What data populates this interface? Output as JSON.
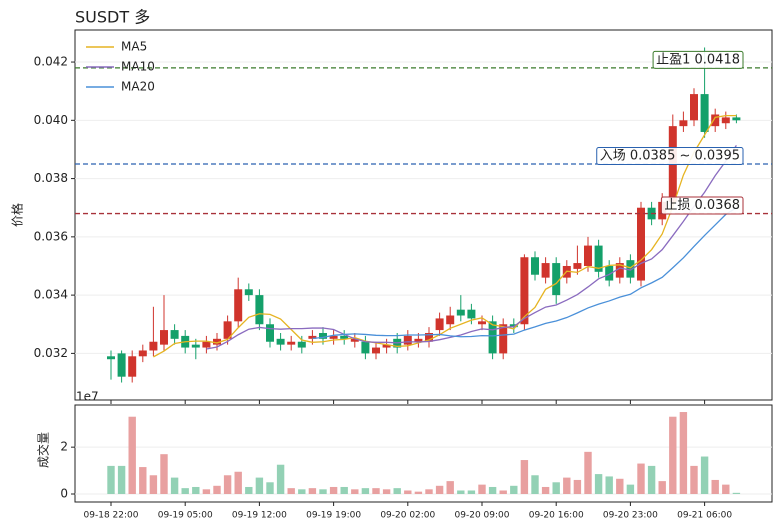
{
  "chart_data": [
    {
      "type": "candlestick",
      "title": "SUSDT 多",
      "ylabel": "价格",
      "open": [
        0.0319,
        0.032,
        0.0312,
        0.0319,
        0.0321,
        0.0323,
        0.0328,
        0.0326,
        0.0323,
        0.0322,
        0.0323,
        0.0325,
        0.0331,
        0.0342,
        0.034,
        0.033,
        0.0325,
        0.0323,
        0.0324,
        0.0325,
        0.0327,
        0.0325,
        0.0326,
        0.0324,
        0.0324,
        0.032,
        0.0322,
        0.0325,
        0.0323,
        0.0324,
        0.0324,
        0.0328,
        0.033,
        0.0335,
        0.0335,
        0.033,
        0.0331,
        0.032,
        0.033,
        0.033,
        0.0353,
        0.0346,
        0.0351,
        0.0346,
        0.0349,
        0.035,
        0.0357,
        0.035,
        0.0346,
        0.0352,
        0.0345,
        0.037,
        0.0366,
        0.0372,
        0.0398,
        0.04,
        0.0409,
        0.0398,
        0.0399,
        0.0401
      ],
      "high": [
        0.0321,
        0.0321,
        0.0321,
        0.0323,
        0.0336,
        0.034,
        0.033,
        0.0328,
        0.0325,
        0.0326,
        0.0327,
        0.0333,
        0.0346,
        0.0344,
        0.0342,
        0.0332,
        0.0327,
        0.0326,
        0.0326,
        0.0328,
        0.0329,
        0.0328,
        0.0328,
        0.0327,
        0.0326,
        0.0324,
        0.0325,
        0.0327,
        0.0328,
        0.0327,
        0.0329,
        0.0334,
        0.0336,
        0.034,
        0.0337,
        0.0333,
        0.0333,
        0.0332,
        0.0332,
        0.0354,
        0.0355,
        0.0353,
        0.0353,
        0.0352,
        0.0357,
        0.036,
        0.0359,
        0.0352,
        0.0353,
        0.0354,
        0.0372,
        0.0372,
        0.0375,
        0.0402,
        0.0403,
        0.0411,
        0.0425,
        0.0404,
        0.0403,
        0.0402
      ],
      "low": [
        0.0311,
        0.031,
        0.031,
        0.0317,
        0.0319,
        0.0321,
        0.0323,
        0.032,
        0.0318,
        0.032,
        0.0321,
        0.0323,
        0.0329,
        0.0338,
        0.0328,
        0.0322,
        0.0321,
        0.0321,
        0.032,
        0.0323,
        0.0323,
        0.0323,
        0.0323,
        0.0322,
        0.0318,
        0.0318,
        0.032,
        0.032,
        0.0321,
        0.0322,
        0.0322,
        0.0326,
        0.0328,
        0.0331,
        0.033,
        0.0328,
        0.0318,
        0.0318,
        0.0327,
        0.0328,
        0.0345,
        0.0344,
        0.0337,
        0.0344,
        0.0347,
        0.0348,
        0.0346,
        0.0343,
        0.0344,
        0.0344,
        0.0343,
        0.0364,
        0.0364,
        0.037,
        0.0396,
        0.0398,
        0.0394,
        0.0396,
        0.0397,
        0.0399
      ],
      "close": [
        0.0318,
        0.0312,
        0.0319,
        0.0321,
        0.0324,
        0.0328,
        0.0325,
        0.0322,
        0.0322,
        0.0324,
        0.0325,
        0.0331,
        0.0342,
        0.034,
        0.033,
        0.0324,
        0.0323,
        0.0324,
        0.0322,
        0.0326,
        0.0325,
        0.0326,
        0.0325,
        0.0325,
        0.032,
        0.0322,
        0.0323,
        0.0322,
        0.0326,
        0.0325,
        0.0327,
        0.0332,
        0.0333,
        0.0333,
        0.0332,
        0.0331,
        0.032,
        0.033,
        0.0329,
        0.0353,
        0.0347,
        0.0351,
        0.034,
        0.035,
        0.0351,
        0.0357,
        0.0348,
        0.0345,
        0.0351,
        0.0346,
        0.037,
        0.0366,
        0.0372,
        0.0398,
        0.04,
        0.0409,
        0.0396,
        0.0402,
        0.0401,
        0.04
      ],
      "up_color": "#d0342c",
      "down_color": "#14a06a",
      "series": [
        {
          "name": "MA5",
          "color": "#e6b422",
          "values": [
            null,
            null,
            null,
            null,
            0.03188,
            0.03208,
            0.03234,
            0.0324,
            0.03242,
            0.03242,
            0.03236,
            0.03248,
            0.03288,
            0.03324,
            0.03336,
            0.03334,
            0.03318,
            0.03282,
            0.03246,
            0.03238,
            0.0324,
            0.03246,
            0.03248,
            0.03254,
            0.03242,
            0.03236,
            0.0323,
            0.03224,
            0.03226,
            0.03236,
            0.03246,
            0.03264,
            0.03286,
            0.033,
            0.03314,
            0.03322,
            0.03298,
            0.03292,
            0.03284,
            0.03326,
            0.03358,
            0.0342,
            0.0344,
            0.03482,
            0.03478,
            0.03498,
            0.03492,
            0.03502,
            0.03504,
            0.03494,
            0.0352,
            0.03556,
            0.0361,
            0.03704,
            0.03812,
            0.0389,
            0.0395,
            0.0401,
            0.04016,
            0.04016
          ]
        },
        {
          "name": "MA10",
          "color": "#8a6bbf",
          "values": [
            null,
            null,
            null,
            null,
            null,
            null,
            null,
            null,
            null,
            0.03215,
            0.03222,
            0.03241,
            0.03264,
            0.03283,
            0.03289,
            0.03285,
            0.03283,
            0.03285,
            0.03285,
            0.03287,
            0.03287,
            0.03282,
            0.03265,
            0.0325,
            0.0324,
            0.03238,
            0.03238,
            0.03236,
            0.0324,
            0.03239,
            0.03241,
            0.03247,
            0.03255,
            0.03263,
            0.03275,
            0.03284,
            0.03281,
            0.03289,
            0.03292,
            0.0332,
            0.0334,
            0.03359,
            0.03366,
            0.03383,
            0.03402,
            0.03428,
            0.03456,
            0.03471,
            0.03493,
            0.03486,
            0.03509,
            0.03524,
            0.03556,
            0.03604,
            0.03653,
            0.03705,
            0.03753,
            0.0381,
            0.0386,
            0.03914
          ]
        },
        {
          "name": "MA20",
          "color": "#4a90d9",
          "values": [
            null,
            null,
            null,
            null,
            null,
            null,
            null,
            null,
            null,
            null,
            null,
            null,
            null,
            null,
            null,
            null,
            null,
            null,
            null,
            0.03251,
            0.03255,
            0.03262,
            0.03265,
            0.03267,
            0.03265,
            0.03262,
            0.03261,
            0.03261,
            0.03263,
            0.03263,
            0.03264,
            0.03265,
            0.0326,
            0.03257,
            0.03258,
            0.03261,
            0.0326,
            0.03263,
            0.03266,
            0.0328,
            0.03291,
            0.03303,
            0.03311,
            0.03323,
            0.03339,
            0.03356,
            0.03369,
            0.0338,
            0.03393,
            0.03403,
            0.03425,
            0.03442,
            0.03461,
            0.03494,
            0.03528,
            0.03567,
            0.03605,
            0.03641,
            0.03677,
            0.037
          ]
        }
      ],
      "legend": "upper left",
      "ylim": [
        0.0304,
        0.0431
      ],
      "yticks": [
        0.032,
        0.034,
        0.036,
        0.038,
        {
          "value": 0.04,
          "label": "0.040"
        },
        0.042
      ],
      "grid": true,
      "annotations": [
        {
          "text": "止盈1 0.0418",
          "value": 0.0418,
          "color": "#3a7a2a"
        },
        {
          "text": "入场 0.0385 ~ 0.0395",
          "value": 0.0385,
          "color": "#2a62b0"
        },
        {
          "text": "止损 0.0368",
          "value": 0.0368,
          "color": "#a8323a"
        }
      ]
    },
    {
      "type": "bar",
      "ylabel": "成交量",
      "offset_label": "1e7",
      "categories": [
        "09-18 22:00",
        null,
        null,
        null,
        null,
        null,
        null,
        "09-19 05:00",
        null,
        null,
        null,
        null,
        null,
        null,
        "09-19 12:00",
        null,
        null,
        null,
        null,
        null,
        null,
        "09-19 19:00",
        null,
        null,
        null,
        null,
        null,
        null,
        "09-20 02:00",
        null,
        null,
        null,
        null,
        null,
        null,
        "09-20 09:00",
        null,
        null,
        null,
        null,
        null,
        null,
        "09-20 16:00",
        null,
        null,
        null,
        null,
        null,
        null,
        "09-20 23:00",
        null,
        null,
        null,
        null,
        null,
        null,
        "09-21 06:00",
        null,
        null,
        null
      ],
      "values": [
        1.2,
        1.2,
        3.3,
        1.15,
        0.8,
        1.7,
        0.7,
        0.25,
        0.3,
        0.2,
        0.35,
        0.8,
        0.95,
        0.3,
        0.7,
        0.5,
        1.25,
        0.25,
        0.2,
        0.25,
        0.2,
        0.3,
        0.3,
        0.2,
        0.25,
        0.25,
        0.2,
        0.25,
        0.15,
        0.1,
        0.2,
        0.35,
        0.55,
        0.15,
        0.15,
        0.4,
        0.3,
        0.15,
        0.35,
        1.45,
        0.8,
        0.3,
        0.5,
        0.7,
        0.6,
        1.8,
        0.85,
        0.75,
        0.65,
        0.4,
        1.3,
        1.2,
        0.55,
        3.3,
        3.5,
        1.2,
        1.6,
        0.6,
        0.4,
        0.05
      ],
      "up_color": "#e8a0a0",
      "down_color": "#93d1b5",
      "ylim": [
        0,
        3.8
      ],
      "yticks": [
        0,
        2
      ],
      "grid": true
    }
  ]
}
